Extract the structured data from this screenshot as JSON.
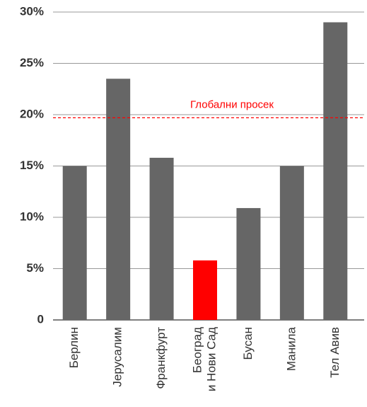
{
  "chart_data": {
    "type": "bar",
    "categories": [
      [
        "Берлин"
      ],
      [
        "Јерусалим"
      ],
      [
        "Франкфурт"
      ],
      [
        "Београд",
        "и Нови Сад"
      ],
      [
        "Бусан"
      ],
      [
        "Манила"
      ],
      [
        "Тел Авив"
      ]
    ],
    "values": [
      15,
      23.5,
      15.8,
      5.8,
      10.9,
      15,
      29
    ],
    "colors": [
      "#666666",
      "#666666",
      "#666666",
      "#ff0000",
      "#666666",
      "#666666",
      "#666666"
    ],
    "ylim": [
      0,
      30
    ],
    "yticks": [
      0,
      {
        "value": 5,
        "label": "5%"
      },
      {
        "value": 10,
        "label": "10%"
      },
      {
        "value": 15,
        "label": "15%"
      },
      {
        "value": 20,
        "label": "20%"
      },
      {
        "value": 25,
        "label": "25%"
      },
      {
        "value": 30,
        "label": "30%"
      }
    ],
    "grid": true,
    "reference_line": {
      "value": 19.7,
      "label": "Глобални просек",
      "color": "#ff0000"
    }
  }
}
